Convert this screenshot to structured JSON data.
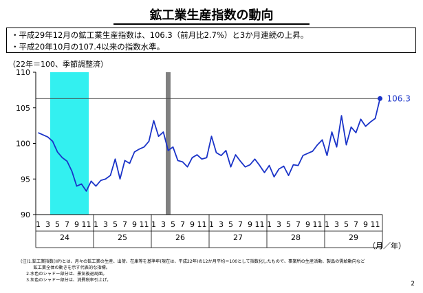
{
  "title": "鉱工業生産指数の動向",
  "summary": [
    "・平成29年12月の鉱工業生産指数は、106.3（前月比2.7%）と3か月連続の上昇。",
    "・平成20年10月の107.4以来の指数水準。"
  ],
  "unit_note": "（22年＝100、季節調整済）",
  "notes": [
    "(注)1.鉱工業指数(IIP)とは、月々の鉱工業の生産、出荷、在庫等を基準年(現在は、平成22年)の12か月平均＝100として指数化したもので、事業所の生産活動、製品の需給動向など",
    "　　　鉱工業全体の動きを示す代表的な指標。",
    "　 2.水色のシャドー部分は、景気後退局面。",
    "　 3.灰色のシャドー部分は、消費税率引上げ。"
  ],
  "page_number": "2",
  "chart_data": {
    "type": "line",
    "ylim": [
      90,
      110
    ],
    "yticks": [
      90,
      95,
      100,
      105,
      110
    ],
    "month_tick_labels": [
      "1",
      "3",
      "5",
      "7",
      "9",
      "11"
    ],
    "years": [
      "24",
      "25",
      "26",
      "27",
      "28",
      "29"
    ],
    "x_unit_label": "（月／年）",
    "reference_line": 106.3,
    "end_label": "106.3",
    "series": [
      {
        "color": "#1a33c8",
        "values": [
          101.5,
          101.2,
          100.9,
          100.3,
          98.8,
          98.0,
          97.5,
          96.1,
          94.0,
          94.3,
          93.3,
          94.7,
          94.0,
          94.8,
          95.0,
          95.5,
          97.8,
          95.0,
          97.6,
          97.2,
          98.8,
          99.2,
          99.5,
          100.3,
          103.2,
          101.0,
          101.6,
          99.0,
          99.5,
          97.6,
          97.4,
          96.7,
          98.0,
          98.4,
          97.8,
          98.0,
          101.0,
          98.7,
          98.3,
          99.0,
          96.7,
          98.4,
          97.5,
          96.7,
          97.0,
          97.8,
          96.9,
          95.9,
          96.9,
          95.3,
          96.4,
          96.8,
          95.5,
          97.0,
          96.9,
          98.3,
          98.6,
          98.9,
          99.8,
          100.5,
          98.3,
          101.6,
          99.5,
          103.9,
          99.8,
          102.3,
          101.5,
          103.4,
          102.4,
          103.0,
          103.5,
          106.3
        ]
      }
    ],
    "shaded_periods": [
      {
        "kind": "recession",
        "color": "#33f0f0",
        "from_index": 3,
        "to_index": 10
      },
      {
        "kind": "consumption-tax",
        "color": "#808080",
        "from_index": 27,
        "to_index": 27
      }
    ]
  }
}
